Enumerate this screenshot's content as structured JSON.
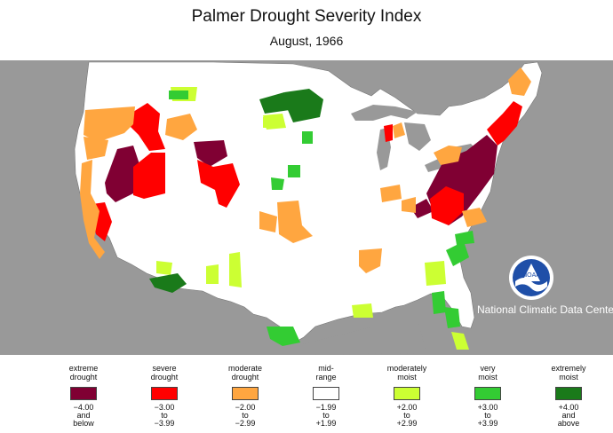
{
  "title": "Palmer Drought Severity Index",
  "subtitle": "August, 1966",
  "credit": "National Climatic Data Center",
  "logo_text": "NOAA",
  "colors": {
    "background": "#999999",
    "land": "#ffffff",
    "water": "#999999",
    "extreme_drought": "#800033",
    "severe_drought": "#ff0000",
    "moderate_drought": "#ffa640",
    "mid_range": "#ffffff",
    "moderately_moist": "#ccff33",
    "very_moist": "#33cc33",
    "extremely_moist": "#1a7a1a"
  },
  "legend": [
    {
      "label": [
        "extreme",
        "drought"
      ],
      "range": [
        "−4.00",
        "and",
        "below"
      ],
      "color": "#800033"
    },
    {
      "label": [
        "severe",
        "drought"
      ],
      "range": [
        "−3.00",
        "to",
        "−3.99"
      ],
      "color": "#ff0000"
    },
    {
      "label": [
        "moderate",
        "drought"
      ],
      "range": [
        "−2.00",
        "to",
        "−2.99"
      ],
      "color": "#ffa640"
    },
    {
      "label": [
        "mid-",
        "range"
      ],
      "range": [
        "−1.99",
        "to",
        "+1.99"
      ],
      "color": "#ffffff"
    },
    {
      "label": [
        "moderately",
        "moist"
      ],
      "range": [
        "+2.00",
        "to",
        "+2.99"
      ],
      "color": "#ccff33"
    },
    {
      "label": [
        "very",
        "moist"
      ],
      "range": [
        "+3.00",
        "to",
        "+3.99"
      ],
      "color": "#33cc33"
    },
    {
      "label": [
        "extremely",
        "moist"
      ],
      "range": [
        "+4.00",
        "and",
        "above"
      ],
      "color": "#1a7a1a"
    }
  ]
}
